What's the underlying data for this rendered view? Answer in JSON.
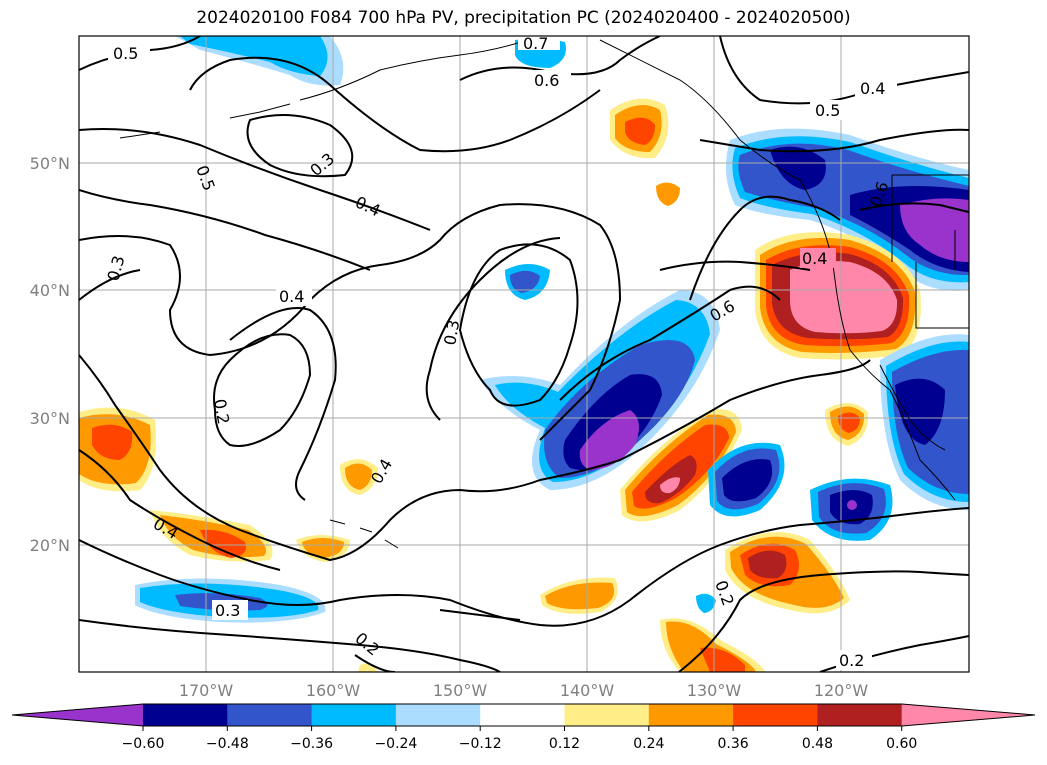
{
  "title": "2024020100 F084 700 hPa PV, precipitation PC (2024020400 - 2024020500)",
  "map": {
    "lon_labels": [
      "170°W",
      "160°W",
      "150°W",
      "140°W",
      "130°W",
      "120°W"
    ],
    "lat_labels": [
      "50°N",
      "40°N",
      "30°N",
      "20°N"
    ],
    "contour_labels": [
      "0.5",
      "0.7",
      "0.6",
      "0.4",
      "0.5",
      "0.3",
      "0.5",
      "0.4",
      "0.3",
      "0.4",
      "0.3",
      "0.6",
      "0.2",
      "0.4",
      "0.4",
      "0.3",
      "0.2",
      "0.2",
      "0.2",
      "0.4",
      "0.6"
    ]
  },
  "colorbar": {
    "tick_labels": [
      "−0.60",
      "−0.48",
      "−0.36",
      "−0.24",
      "−0.12",
      "0.12",
      "0.24",
      "0.36",
      "0.48",
      "0.60"
    ],
    "colors": [
      "#9933cc",
      "#000090",
      "#3355cc",
      "#00bbff",
      "#aaddff",
      "#ffffff",
      "#ffee88",
      "#ff9900",
      "#ff4400",
      "#b02020",
      "#ff88aa"
    ]
  }
}
